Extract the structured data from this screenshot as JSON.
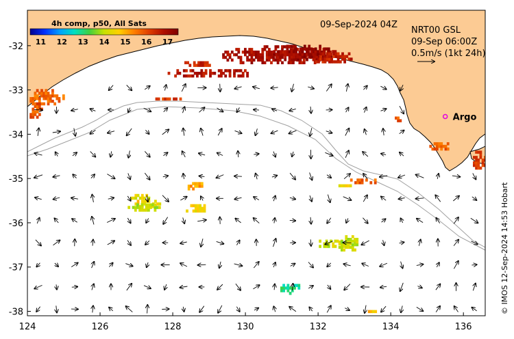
{
  "title": {
    "date": "09-Sep-2024 04Z",
    "product": "NRT00 GSL",
    "current_time": "09-Sep 06:00Z",
    "scale_label": "0.5m/s (1kt 24h)"
  },
  "colorbar": {
    "title": "4h comp, p50, All Sats",
    "ticks": [
      "11",
      "12",
      "13",
      "14",
      "15",
      "16",
      "17"
    ],
    "range": [
      10.5,
      17.5
    ],
    "colors": [
      "#00008f",
      "#0030ff",
      "#00a0ff",
      "#00e0c0",
      "#40d040",
      "#c8e000",
      "#ffd000",
      "#ff8000",
      "#e04000",
      "#b01000",
      "#800000"
    ]
  },
  "axes": {
    "x_ticks": [
      "124",
      "126",
      "128",
      "130",
      "132",
      "134",
      "136"
    ],
    "y_ticks": [
      "-32",
      "-33",
      "-34",
      "-35",
      "-36",
      "-37",
      "-38"
    ],
    "x_range": [
      124,
      136.6
    ],
    "y_range": [
      -38.1,
      -31.2
    ]
  },
  "argo": {
    "label": "Argo",
    "lon": 135.5,
    "lat": -33.6,
    "color": "#e000e0"
  },
  "credit": "© IMOS 12-Sep-2024 14:53 Hobart",
  "colors": {
    "land": "#fccb94",
    "contour": "#a0a0a0",
    "arrow": "#000000"
  }
}
